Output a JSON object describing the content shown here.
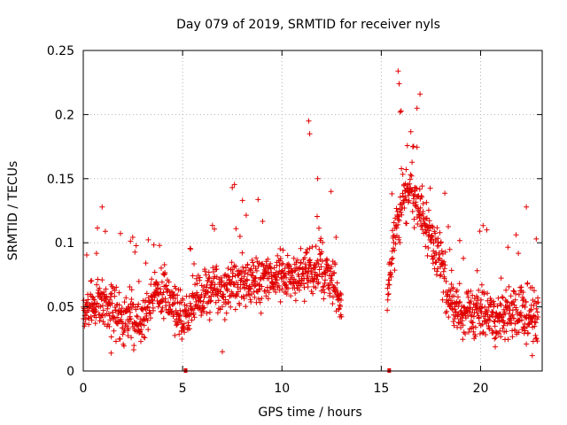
{
  "chart_data": {
    "type": "scatter",
    "title": "Day 079 of 2019, SRMTID for receiver nyls",
    "xlabel": "GPS time / hours",
    "ylabel": "SRMTID / TECUs",
    "xlim": [
      0,
      23.1
    ],
    "ylim": [
      0,
      0.25
    ],
    "x_ticks": [
      0,
      5,
      10,
      15,
      20
    ],
    "x_tick_labels": [
      "0",
      "5",
      "10",
      "15",
      "20"
    ],
    "y_ticks": [
      0,
      0.05,
      0.1,
      0.15,
      0.2,
      0.25
    ],
    "y_tick_labels": [
      "0",
      "0.05",
      "0.1",
      "0.15",
      "0.2",
      "0.25"
    ],
    "grid": true,
    "marker": "+",
    "color": "#e00000",
    "series": [
      {
        "name": "SRMTID",
        "segments": [
          {
            "x_range": [
              0.0,
              13.0
            ],
            "sample_step_hours": 0.0125,
            "seed": 7,
            "envelope": [
              [
                0.0,
                0.045
              ],
              [
                0.5,
                0.05
              ],
              [
                1.0,
                0.055
              ],
              [
                1.5,
                0.048
              ],
              [
                2.0,
                0.042
              ],
              [
                2.5,
                0.04
              ],
              [
                3.0,
                0.04
              ],
              [
                3.5,
                0.06
              ],
              [
                4.0,
                0.06
              ],
              [
                4.5,
                0.055
              ],
              [
                5.0,
                0.04
              ],
              [
                5.5,
                0.055
              ],
              [
                6.0,
                0.06
              ],
              [
                7.0,
                0.065
              ],
              [
                8.0,
                0.07
              ],
              [
                9.0,
                0.07
              ],
              [
                10.0,
                0.075
              ],
              [
                11.0,
                0.075
              ],
              [
                12.0,
                0.08
              ],
              [
                12.5,
                0.07
              ],
              [
                13.0,
                0.05
              ]
            ],
            "spread": 0.028
          },
          {
            "x_range": [
              15.3,
              22.9
            ],
            "sample_step_hours": 0.0125,
            "seed": 11,
            "envelope": [
              [
                15.3,
                0.06
              ],
              [
                15.6,
                0.1
              ],
              [
                16.0,
                0.13
              ],
              [
                16.5,
                0.14
              ],
              [
                17.0,
                0.12
              ],
              [
                17.5,
                0.1
              ],
              [
                18.0,
                0.09
              ],
              [
                18.3,
                0.06
              ],
              [
                19.0,
                0.045
              ],
              [
                20.0,
                0.045
              ],
              [
                21.0,
                0.04
              ],
              [
                22.0,
                0.045
              ],
              [
                22.9,
                0.04
              ]
            ],
            "spread": 0.03
          }
        ],
        "notable_points": [
          {
            "x": 0.95,
            "y": 0.128
          },
          {
            "x": 11.35,
            "y": 0.195
          },
          {
            "x": 11.4,
            "y": 0.185
          },
          {
            "x": 7.5,
            "y": 0.143
          },
          {
            "x": 11.8,
            "y": 0.15
          },
          {
            "x": 15.85,
            "y": 0.234
          },
          {
            "x": 15.9,
            "y": 0.224
          },
          {
            "x": 16.95,
            "y": 0.216
          },
          {
            "x": 15.95,
            "y": 0.202
          },
          {
            "x": 16.8,
            "y": 0.205
          },
          {
            "x": 22.3,
            "y": 0.128
          },
          {
            "x": 22.8,
            "y": 0.103
          },
          {
            "x": 22.6,
            "y": 0.012
          },
          {
            "x": 1.4,
            "y": 0.014
          },
          {
            "x": 7.0,
            "y": 0.015
          }
        ]
      }
    ],
    "gap_markers": [
      {
        "x": 5.15,
        "y": 0
      },
      {
        "x": 15.4,
        "y": 0
      }
    ]
  }
}
